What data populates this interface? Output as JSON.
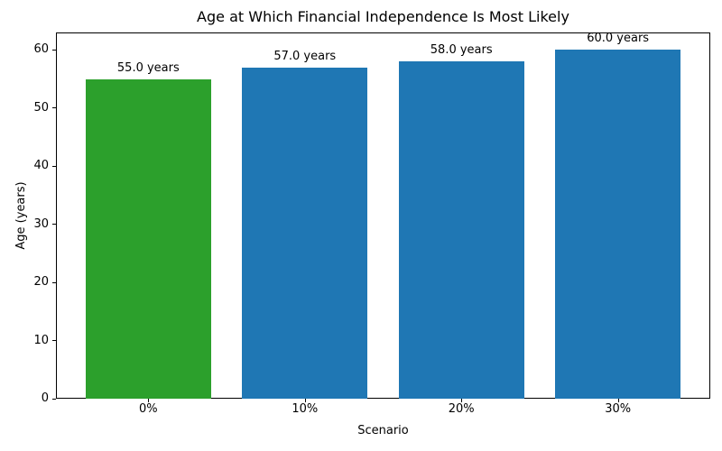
{
  "chart_data": {
    "type": "bar",
    "title": "Age at Which Financial Independence Is Most Likely",
    "xlabel": "Scenario",
    "ylabel": "Age (years)",
    "categories": [
      "0%",
      "10%",
      "20%",
      "30%"
    ],
    "values": [
      55.0,
      57.0,
      58.0,
      60.0
    ],
    "bar_labels": [
      "55.0 years",
      "57.0 years",
      "58.0 years",
      "60.0 years"
    ],
    "bar_colors": [
      "#2ca02c",
      "#1f77b4",
      "#1f77b4",
      "#1f77b4"
    ],
    "yticks": [
      0,
      10,
      20,
      30,
      40,
      50,
      60
    ],
    "ylim": [
      0,
      63
    ],
    "grid": false,
    "legend_position": "none"
  }
}
